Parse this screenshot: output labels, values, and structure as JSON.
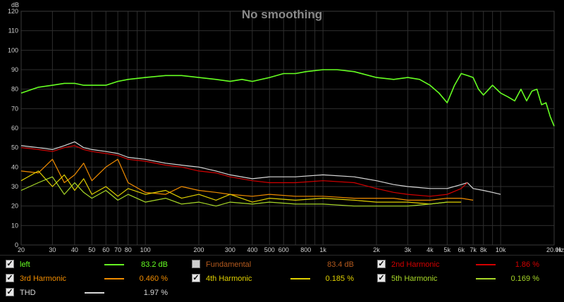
{
  "chart_data": {
    "type": "line",
    "title": "No smoothing",
    "ylabel": "dB",
    "xlabel": "Hz",
    "xscale": "log",
    "xlim": [
      20,
      20000
    ],
    "ylim": [
      0,
      120
    ],
    "grid": true,
    "y_ticks": [
      "0",
      "10",
      "20",
      "30",
      "40",
      "50",
      "60",
      "70",
      "80",
      "90",
      "100",
      "110",
      "120"
    ],
    "x_ticks": [
      {
        "v": 20,
        "l": "20"
      },
      {
        "v": 30,
        "l": "30"
      },
      {
        "v": 40,
        "l": "40"
      },
      {
        "v": 50,
        "l": "50"
      },
      {
        "v": 60,
        "l": "60"
      },
      {
        "v": 70,
        "l": "70"
      },
      {
        "v": 80,
        "l": "80"
      },
      {
        "v": 100,
        "l": "100"
      },
      {
        "v": 200,
        "l": "200"
      },
      {
        "v": 300,
        "l": "300"
      },
      {
        "v": 400,
        "l": "400"
      },
      {
        "v": 500,
        "l": "500"
      },
      {
        "v": 600,
        "l": "600"
      },
      {
        "v": 800,
        "l": "800"
      },
      {
        "v": 1000,
        "l": "1k"
      },
      {
        "v": 2000,
        "l": "2k"
      },
      {
        "v": 3000,
        "l": "3k"
      },
      {
        "v": 4000,
        "l": "4k"
      },
      {
        "v": 5000,
        "l": "5k"
      },
      {
        "v": 6000,
        "l": "6k"
      },
      {
        "v": 7000,
        "l": "7k"
      },
      {
        "v": 8000,
        "l": "8k"
      },
      {
        "v": 10000,
        "l": "10k"
      },
      {
        "v": 20000,
        "l": "20.0k"
      }
    ],
    "series": [
      {
        "name": "left",
        "color": "#66ff22",
        "x": [
          20,
          25,
          30,
          35,
          40,
          45,
          50,
          60,
          70,
          80,
          100,
          130,
          160,
          200,
          250,
          300,
          350,
          400,
          500,
          600,
          700,
          800,
          1000,
          1200,
          1500,
          2000,
          2500,
          3000,
          3500,
          4000,
          4500,
          5000,
          5500,
          6000,
          6500,
          7000,
          7500,
          8000,
          9000,
          10000,
          11000,
          12000,
          13000,
          14000,
          15000,
          16000,
          17000,
          18000,
          19000,
          20000
        ],
        "y": [
          78,
          81,
          82,
          83,
          83,
          82,
          82,
          82,
          84,
          85,
          86,
          87,
          87,
          86,
          85,
          84,
          85,
          84,
          86,
          88,
          88,
          89,
          90,
          90,
          89,
          86,
          85,
          86,
          85,
          82,
          78,
          73,
          82,
          88,
          87,
          86,
          80,
          77,
          82,
          78,
          76,
          74,
          80,
          74,
          79,
          80,
          72,
          73,
          66,
          61
        ]
      },
      {
        "name": "THD",
        "color": "#d8d8d8",
        "x": [
          20,
          25,
          30,
          35,
          40,
          45,
          50,
          60,
          70,
          80,
          100,
          130,
          160,
          200,
          250,
          300,
          400,
          500,
          700,
          1000,
          1500,
          2000,
          2500,
          3000,
          4000,
          5000,
          6000,
          6500,
          7000,
          8000,
          9000,
          10000
        ],
        "y": [
          51,
          50,
          49,
          51,
          53,
          50,
          49,
          48,
          47,
          45,
          44,
          42,
          41,
          40,
          38,
          36,
          34,
          35,
          35,
          36,
          35,
          33,
          31,
          30,
          29,
          29,
          31,
          32,
          29,
          28,
          27,
          26
        ]
      },
      {
        "name": "2nd Harmonic",
        "color": "#d40000",
        "x": [
          20,
          25,
          30,
          35,
          40,
          45,
          50,
          60,
          70,
          80,
          100,
          130,
          160,
          200,
          250,
          300,
          400,
          500,
          700,
          1000,
          1500,
          2000,
          2500,
          3000,
          4000,
          5000,
          6000,
          6500
        ],
        "y": [
          50,
          49,
          48,
          50,
          51,
          49,
          48,
          47,
          46,
          44,
          43,
          41,
          40,
          38,
          37,
          35,
          33,
          32,
          32,
          33,
          32,
          29,
          27,
          26,
          25,
          26,
          29,
          32
        ]
      },
      {
        "name": "3rd Harmonic",
        "color": "#f08c00",
        "x": [
          20,
          25,
          30,
          35,
          40,
          45,
          50,
          60,
          70,
          80,
          100,
          130,
          160,
          200,
          250,
          300,
          400,
          500,
          700,
          1000,
          1500,
          2000,
          2500,
          3000,
          4000,
          5000,
          6000,
          7000
        ],
        "y": [
          38,
          37,
          44,
          32,
          36,
          42,
          33,
          40,
          44,
          32,
          27,
          26,
          30,
          28,
          27,
          26,
          25,
          26,
          25,
          25,
          24,
          24,
          24,
          23,
          23,
          24,
          24,
          23
        ]
      },
      {
        "name": "4th Harmonic",
        "color": "#e0d000",
        "x": [
          20,
          25,
          30,
          35,
          40,
          45,
          50,
          60,
          70,
          80,
          100,
          130,
          160,
          200,
          250,
          300,
          400,
          500,
          700,
          1000,
          1500,
          2000,
          2500,
          3000,
          4000,
          5000,
          6000
        ],
        "y": [
          33,
          38,
          30,
          36,
          28,
          34,
          26,
          30,
          25,
          29,
          26,
          28,
          24,
          26,
          23,
          26,
          22,
          24,
          23,
          24,
          23,
          22,
          22,
          22,
          21,
          22,
          22
        ]
      },
      {
        "name": "5th Harmonic",
        "color": "#a8d828",
        "x": [
          20,
          25,
          30,
          35,
          40,
          45,
          50,
          60,
          70,
          80,
          100,
          130,
          160,
          200,
          250,
          300,
          400,
          500,
          700,
          1000,
          1500,
          2000,
          2500,
          3000,
          4000,
          5000
        ],
        "y": [
          28,
          32,
          35,
          26,
          32,
          27,
          24,
          28,
          23,
          26,
          22,
          24,
          21,
          22,
          20,
          22,
          21,
          22,
          21,
          21,
          20,
          20,
          20,
          20,
          21,
          22
        ]
      }
    ]
  },
  "legend": {
    "items": [
      {
        "name": "left",
        "value": "83.2 dB",
        "checked": true,
        "color": "#66ff22"
      },
      {
        "name": "Fundamental",
        "value": "83.4 dB",
        "checked": false,
        "color": "#b45a1e"
      },
      {
        "name": "2nd Harmonic",
        "value": "1.86 %",
        "checked": true,
        "color": "#d40000"
      },
      {
        "name": "3rd Harmonic",
        "value": "0.460 %",
        "checked": true,
        "color": "#f08c00"
      },
      {
        "name": "4th Harmonic",
        "value": "0.185 %",
        "checked": true,
        "color": "#e0d000"
      },
      {
        "name": "5th Harmonic",
        "value": "0.169 %",
        "checked": true,
        "color": "#a8d828"
      },
      {
        "name": "THD",
        "value": "1.97 %",
        "checked": true,
        "color": "#d8d8d8"
      }
    ]
  }
}
